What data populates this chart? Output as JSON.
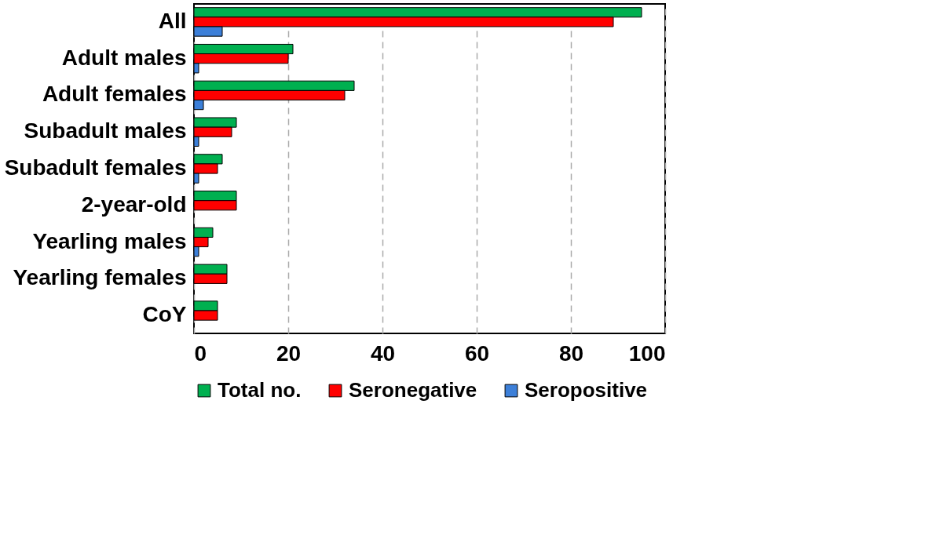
{
  "chart_data": {
    "type": "bar",
    "orientation": "horizontal",
    "categories": [
      "All",
      "Adult males",
      "Adult females",
      "Subadult males",
      "Subadult females",
      "2-year-old",
      "Yearling males",
      "Yearling females",
      "CoY"
    ],
    "series": [
      {
        "name": "Total no.",
        "color": "#00b050",
        "values": [
          95,
          21,
          34,
          9,
          6,
          9,
          4,
          7,
          5
        ]
      },
      {
        "name": "Seronegative",
        "color": "#ff0000",
        "values": [
          89,
          20,
          32,
          8,
          5,
          9,
          3,
          7,
          5
        ]
      },
      {
        "name": "Seropositive",
        "color": "#3c7fd8",
        "values": [
          6,
          1,
          2,
          1,
          1,
          null,
          1,
          null,
          null
        ]
      }
    ],
    "xlim": [
      0,
      100
    ],
    "xticks": [
      0,
      20,
      40,
      60,
      80,
      100
    ],
    "grid": "x",
    "legend": "bottom"
  }
}
